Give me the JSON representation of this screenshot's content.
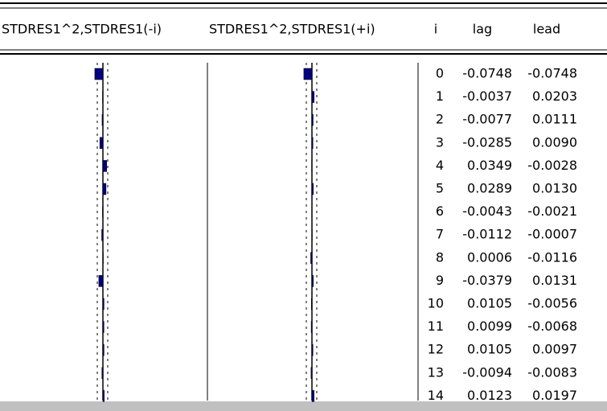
{
  "columns": [
    "STDRES1^2,STDRES1(-i)",
    "STDRES1^2,STDRES1(+i)",
    "i",
    "lag",
    "lead"
  ],
  "i": [
    0,
    1,
    2,
    3,
    4,
    5,
    6,
    7,
    8,
    9,
    10,
    11,
    12,
    13,
    14
  ],
  "lag": {
    "values": [
      -0.0748,
      -0.0037,
      -0.0077,
      -0.0285,
      0.0349,
      0.0289,
      -0.0043,
      -0.0112,
      0.0006,
      -0.0379,
      0.0105,
      0.0099,
      0.0105,
      -0.0094,
      0.0123
    ],
    "value_labels": [
      "-0.0748",
      "-0.0037",
      "-0.0077",
      "-0.0285",
      "0.0349",
      "0.0289",
      "-0.0043",
      "-0.0112",
      "0.0006",
      "-0.0379",
      "0.0105",
      "0.0099",
      "0.0105",
      "-0.0094",
      "0.0123"
    ]
  },
  "lead": {
    "values": [
      -0.0748,
      0.0203,
      0.0111,
      0.009,
      -0.0028,
      0.013,
      -0.0021,
      -0.0007,
      -0.0116,
      0.0131,
      -0.0056,
      -0.0068,
      0.0097,
      -0.0083,
      0.0197
    ],
    "value_labels": [
      "-0.0748",
      "0.0203",
      "0.0111",
      "0.0090",
      "-0.0028",
      "0.0130",
      "-0.0021",
      "-0.0007",
      "-0.0116",
      "0.0131",
      "-0.0056",
      "-0.0068",
      "0.0097",
      "-0.0083",
      "0.0197"
    ]
  }
}
